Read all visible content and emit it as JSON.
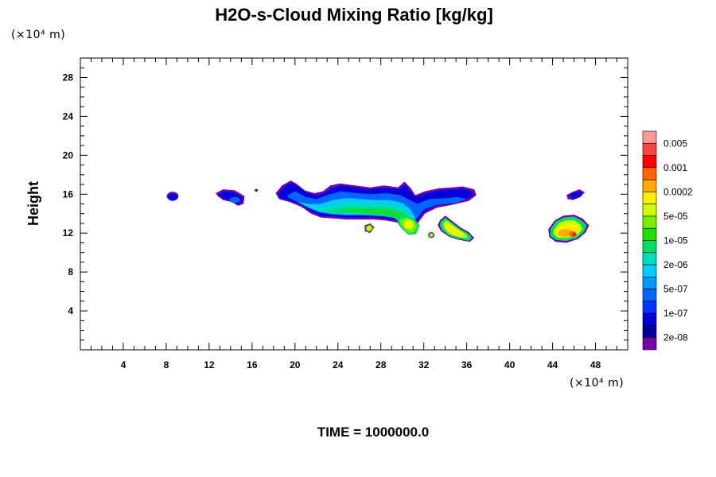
{
  "chart_data": {
    "type": "heatmap",
    "title": "H2O-s-Cloud Mixing Ratio [kg/kg]",
    "ylabel": "Height",
    "x_unit": "(×10⁴ m)",
    "y_unit": "(×10⁴ m)",
    "footer": "TIME = 1000000.0",
    "xlim": [
      0,
      51
    ],
    "ylim": [
      0,
      30
    ],
    "x_ticks": [
      4,
      8,
      12,
      16,
      20,
      24,
      28,
      32,
      36,
      40,
      44,
      48
    ],
    "y_ticks": [
      4,
      8,
      12,
      16,
      20,
      24,
      28
    ],
    "grid": false,
    "colorbar": {
      "placement": "right",
      "labels": [
        "0.005",
        "0.001",
        "0.0002",
        "5e-05",
        "1e-05",
        "2e-06",
        "5e-07",
        "1e-07",
        "2e-08"
      ],
      "colors_top_to_bottom": [
        "#ff9999",
        "#ff4444",
        "#ff0000",
        "#ff6600",
        "#ffaa00",
        "#ffee00",
        "#ccff00",
        "#77ee00",
        "#22dd00",
        "#00dd66",
        "#00ddbb",
        "#00ccff",
        "#0099ff",
        "#0066ff",
        "#0033ff",
        "#0000dd",
        "#000099",
        "#7700aa"
      ]
    },
    "regions": [
      {
        "x": 8.5,
        "y": 15.8,
        "level": "1e-07"
      },
      {
        "x": 14.0,
        "y": 15.6,
        "level": "1e-07"
      },
      {
        "x": 23.5,
        "y": 15.0,
        "level": "2e-06"
      },
      {
        "x": 27.0,
        "y": 14.0,
        "level": "1e-05"
      },
      {
        "x": 30.5,
        "y": 13.0,
        "level": "5e-05"
      },
      {
        "x": 34.5,
        "y": 16.0,
        "level": "1e-07"
      },
      {
        "x": 35.0,
        "y": 12.3,
        "level": "5e-05"
      },
      {
        "x": 46.0,
        "y": 16.0,
        "level": "1e-07"
      },
      {
        "x": 45.5,
        "y": 12.3,
        "level": "0.0002"
      }
    ]
  }
}
